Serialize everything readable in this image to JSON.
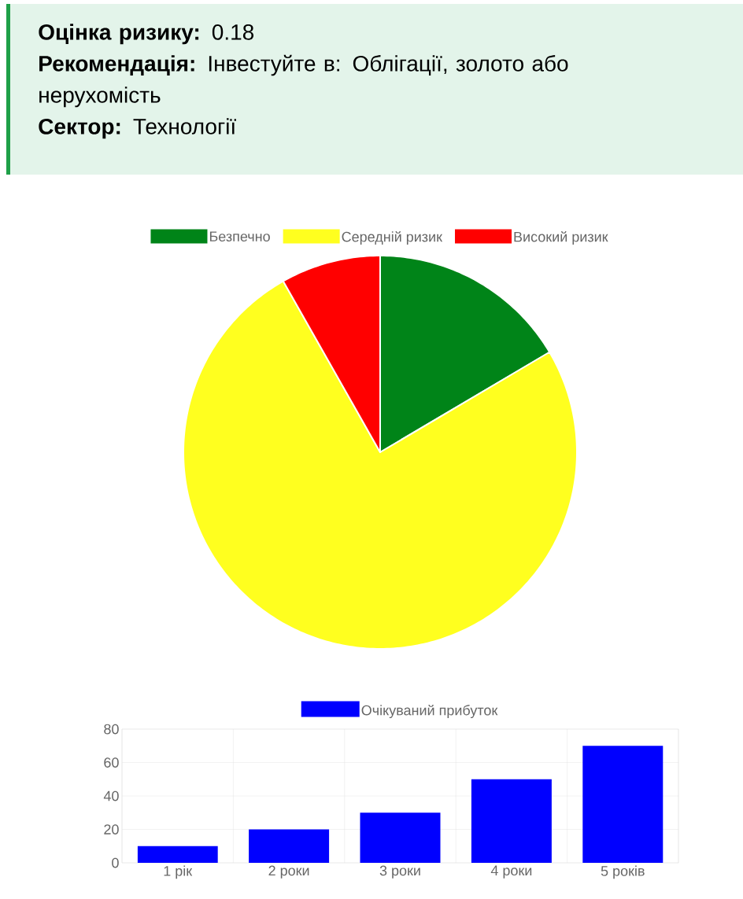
{
  "chart_data": [
    {
      "type": "other",
      "annotations": [
        "**Оцінка ризику:** 0.18",
        "**Рекомендація:** Інвестуйте в: Облігації, золото або нерухомість",
        "**Сектор:** Технології"
      ]
    },
    {
      "type": "pie",
      "categories": [
        "Безпечно",
        "Середній ризик",
        "Високий ризик"
      ],
      "values": [
        16.5,
        75.3,
        8.2
      ],
      "colors": [
        "#008418",
        "#ffff1f",
        "#ff0000"
      ],
      "legend": "top"
    },
    {
      "type": "bar",
      "categories": [
        "1 рік",
        "2 роки",
        "3 роки",
        "4 роки",
        "5 років"
      ],
      "series": [
        {
          "name": "Очікуваний прибуток",
          "color": "#0000ff",
          "values": [
            10,
            20,
            30,
            50,
            70
          ]
        }
      ],
      "ylim": [
        0,
        80
      ],
      "yticks": [
        0,
        20,
        40,
        60,
        80
      ],
      "grid": true,
      "legend": "top"
    }
  ]
}
